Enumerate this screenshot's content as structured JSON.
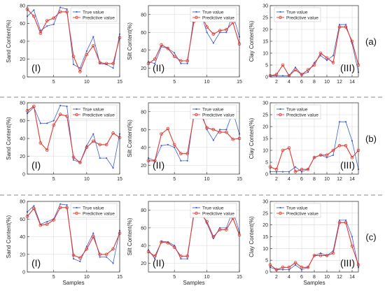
{
  "chart_data": [
    {
      "type": "line",
      "row": "a",
      "col": 1,
      "ylabel": "Sand Content(%)",
      "xlabel": "",
      "panel_label": "(I)",
      "xlim": [
        1,
        15
      ],
      "ylim": [
        0,
        80
      ],
      "xticks": [
        "5",
        "10",
        "15"
      ],
      "yticks": [
        "0",
        "20",
        "40",
        "60",
        "80"
      ],
      "x": [
        1,
        2,
        3,
        4,
        5,
        6,
        7,
        8,
        9,
        10,
        11,
        12,
        13,
        14,
        15
      ],
      "series": [
        {
          "name": "True value",
          "color": "#3a5fd8",
          "marker": "dot",
          "values": [
            68,
            75,
            52,
            57,
            59,
            78,
            76,
            14,
            10,
            29,
            45,
            15,
            14,
            10,
            48
          ]
        },
        {
          "name": "Predictive value",
          "color": "#e0392e",
          "marker": "circle",
          "values": [
            76,
            68,
            49,
            63,
            66,
            73,
            73,
            23,
            6,
            25,
            35,
            16,
            15,
            15,
            44
          ]
        }
      ]
    },
    {
      "type": "line",
      "row": "a",
      "col": 2,
      "ylabel": "Silt Content(%)",
      "xlabel": "",
      "panel_label": "(II)",
      "xlim": [
        1,
        15
      ],
      "ylim": [
        10,
        90
      ],
      "xticks": [
        "5",
        "10",
        "15"
      ],
      "yticks": [
        "20",
        "40",
        "60",
        "80"
      ],
      "x": [
        1,
        2,
        3,
        4,
        5,
        6,
        7,
        8,
        9,
        10,
        11,
        12,
        13,
        14,
        15
      ],
      "series": [
        {
          "name": "True value",
          "color": "#3a5fd8",
          "marker": "dot",
          "values": [
            27,
            25,
            44,
            42,
            37,
            25,
            25,
            78,
            83,
            60,
            48,
            60,
            60,
            80,
            55
          ]
        },
        {
          "name": "Predictive value",
          "color": "#e0392e",
          "marker": "circle",
          "values": [
            25,
            30,
            46,
            42,
            33,
            28,
            28,
            72,
            82,
            66,
            58,
            62,
            63,
            71,
            47
          ]
        }
      ]
    },
    {
      "type": "line",
      "row": "a",
      "col": 3,
      "ylabel": "Clay Content(%)",
      "xlabel": "",
      "panel_label": "(III)",
      "xlim": [
        1,
        15
      ],
      "ylim": [
        0,
        30
      ],
      "xticks": [
        "2",
        "4",
        "6",
        "8",
        "10",
        "12",
        "14"
      ],
      "yticks": [
        "0",
        "5",
        "10",
        "15",
        "20",
        "25",
        "30"
      ],
      "x": [
        1,
        2,
        3,
        4,
        5,
        6,
        7,
        8,
        9,
        10,
        11,
        12,
        13,
        14,
        15
      ],
      "series": [
        {
          "name": "True value",
          "color": "#3a5fd8",
          "marker": "dot",
          "values": [
            0.5,
            0.5,
            0.5,
            0.5,
            4,
            1,
            2,
            6,
            9,
            7,
            9,
            22,
            22,
            14,
            2
          ]
        },
        {
          "name": "Predictive value",
          "color": "#e0392e",
          "marker": "circle",
          "values": [
            0.5,
            1,
            5,
            0.5,
            3,
            1,
            3,
            5,
            10,
            8,
            6,
            21,
            21,
            15,
            5
          ]
        }
      ]
    },
    {
      "type": "line",
      "row": "b",
      "col": 1,
      "ylabel": "Sand Content(%)",
      "xlabel": "",
      "panel_label": "(I)",
      "xlim": [
        1,
        15
      ],
      "ylim": [
        0,
        80
      ],
      "xticks": [
        "5",
        "10",
        "15"
      ],
      "yticks": [
        "0",
        "20",
        "40",
        "60",
        "80"
      ],
      "x": [
        1,
        2,
        3,
        4,
        5,
        6,
        7,
        8,
        9,
        10,
        11,
        12,
        13,
        14,
        15
      ],
      "series": [
        {
          "name": "True value",
          "color": "#3a5fd8",
          "marker": "dot",
          "values": [
            68,
            75,
            57,
            57,
            60,
            77,
            76,
            16,
            13,
            32,
            45,
            18,
            18,
            7,
            45
          ]
        },
        {
          "name": "Predictive value",
          "color": "#e0392e",
          "marker": "circle",
          "values": [
            71,
            76,
            35,
            27,
            55,
            67,
            65,
            19,
            13,
            30,
            37,
            33,
            33,
            46,
            41
          ]
        }
      ]
    },
    {
      "type": "line",
      "row": "b",
      "col": 2,
      "ylabel": "Silt Content(%)",
      "xlabel": "",
      "panel_label": "(II)",
      "xlim": [
        1,
        15
      ],
      "ylim": [
        10,
        90
      ],
      "xticks": [
        "5",
        "10",
        "15"
      ],
      "yticks": [
        "20",
        "40",
        "60",
        "80"
      ],
      "x": [
        1,
        2,
        3,
        4,
        5,
        6,
        7,
        8,
        9,
        10,
        11,
        12,
        13,
        14,
        15
      ],
      "series": [
        {
          "name": "True value",
          "color": "#3a5fd8",
          "marker": "dot",
          "values": [
            28,
            25,
            42,
            43,
            40,
            25,
            25,
            78,
            83,
            60,
            48,
            60,
            60,
            80,
            55
          ]
        },
        {
          "name": "Predictive value",
          "color": "#e0392e",
          "marker": "circle",
          "values": [
            25,
            25,
            55,
            61,
            43,
            33,
            33,
            75,
            78,
            62,
            60,
            57,
            57,
            49,
            50
          ]
        }
      ]
    },
    {
      "type": "line",
      "row": "b",
      "col": 3,
      "ylabel": "Clay Content(%)",
      "xlabel": "",
      "panel_label": "(III)",
      "xlim": [
        1,
        15
      ],
      "ylim": [
        0,
        30
      ],
      "xticks": [
        "2",
        "4",
        "6",
        "8",
        "10",
        "12",
        "14"
      ],
      "yticks": [
        "0",
        "5",
        "10",
        "15",
        "20",
        "25",
        "30"
      ],
      "x": [
        1,
        2,
        3,
        4,
        5,
        6,
        7,
        8,
        9,
        10,
        11,
        12,
        13,
        14,
        15
      ],
      "series": [
        {
          "name": "True value",
          "color": "#3a5fd8",
          "marker": "dot",
          "values": [
            1,
            1,
            1,
            1,
            3,
            1,
            2,
            7,
            8,
            7,
            8,
            22,
            22,
            14,
            2
          ]
        },
        {
          "name": "Predictive value",
          "color": "#e0392e",
          "marker": "circle",
          "values": [
            3,
            2,
            10,
            11,
            1,
            2,
            2,
            7,
            8,
            8,
            10,
            12,
            12,
            7,
            10
          ]
        }
      ]
    },
    {
      "type": "line",
      "row": "c",
      "col": 1,
      "ylabel": "Sand Content(%)",
      "xlabel": "Samples",
      "panel_label": "(I)",
      "xlim": [
        1,
        15
      ],
      "ylim": [
        0,
        80
      ],
      "xticks": [
        "5",
        "10",
        "15"
      ],
      "yticks": [
        "0",
        "20",
        "40",
        "60",
        "80"
      ],
      "x": [
        1,
        2,
        3,
        4,
        5,
        6,
        7,
        8,
        9,
        10,
        11,
        12,
        13,
        14,
        15
      ],
      "series": [
        {
          "name": "True value",
          "color": "#3a5fd8",
          "marker": "dot",
          "values": [
            68,
            75,
            54,
            57,
            60,
            77,
            76,
            15,
            12,
            29,
            44,
            17,
            17,
            10,
            47
          ]
        },
        {
          "name": "Predictive value",
          "color": "#e0392e",
          "marker": "circle",
          "values": [
            63,
            72,
            53,
            54,
            59,
            73,
            73,
            19,
            16,
            26,
            40,
            20,
            20,
            26,
            44
          ]
        }
      ]
    },
    {
      "type": "line",
      "row": "c",
      "col": 2,
      "ylabel": "Silt Content(%)",
      "xlabel": "Samples",
      "panel_label": "(II)",
      "xlim": [
        1,
        15
      ],
      "ylim": [
        10,
        90
      ],
      "xticks": [
        "5",
        "10",
        "15"
      ],
      "yticks": [
        "20",
        "40",
        "60",
        "80"
      ],
      "x": [
        1,
        2,
        3,
        4,
        5,
        6,
        7,
        8,
        9,
        10,
        11,
        12,
        13,
        14,
        15
      ],
      "series": [
        {
          "name": "True value",
          "color": "#3a5fd8",
          "marker": "dot",
          "values": [
            35,
            25,
            45,
            44,
            40,
            25,
            25,
            78,
            80,
            65,
            48,
            60,
            60,
            80,
            55
          ]
        },
        {
          "name": "Predictive value",
          "color": "#e0392e",
          "marker": "circle",
          "values": [
            33,
            28,
            44,
            43,
            38,
            28,
            28,
            75,
            77,
            67,
            50,
            58,
            58,
            71,
            52
          ]
        }
      ]
    },
    {
      "type": "line",
      "row": "c",
      "col": 3,
      "ylabel": "Clay Content(%)",
      "xlabel": "Samples",
      "panel_label": "(III)",
      "xlim": [
        1,
        15
      ],
      "ylim": [
        0,
        30
      ],
      "xticks": [
        "2",
        "4",
        "6",
        "8",
        "10",
        "12",
        "14"
      ],
      "yticks": [
        "0",
        "5",
        "10",
        "15",
        "20",
        "25",
        "30"
      ],
      "x": [
        1,
        2,
        3,
        4,
        5,
        6,
        7,
        8,
        9,
        10,
        11,
        12,
        13,
        14,
        15
      ],
      "series": [
        {
          "name": "True value",
          "color": "#3a5fd8",
          "marker": "dot",
          "values": [
            2,
            1,
            1,
            1,
            3,
            1,
            2,
            7,
            8,
            7,
            9,
            22,
            22,
            15,
            2
          ]
        },
        {
          "name": "Predictive value",
          "color": "#e0392e",
          "marker": "circle",
          "values": [
            3,
            1,
            2,
            2,
            4,
            2,
            2,
            7,
            7,
            7,
            8,
            21,
            21,
            11,
            3
          ]
        }
      ]
    }
  ],
  "row_labels": [
    {
      "row": "a",
      "text": "(a)"
    },
    {
      "row": "b",
      "text": "(b)"
    },
    {
      "row": "c",
      "text": "(c)"
    }
  ]
}
